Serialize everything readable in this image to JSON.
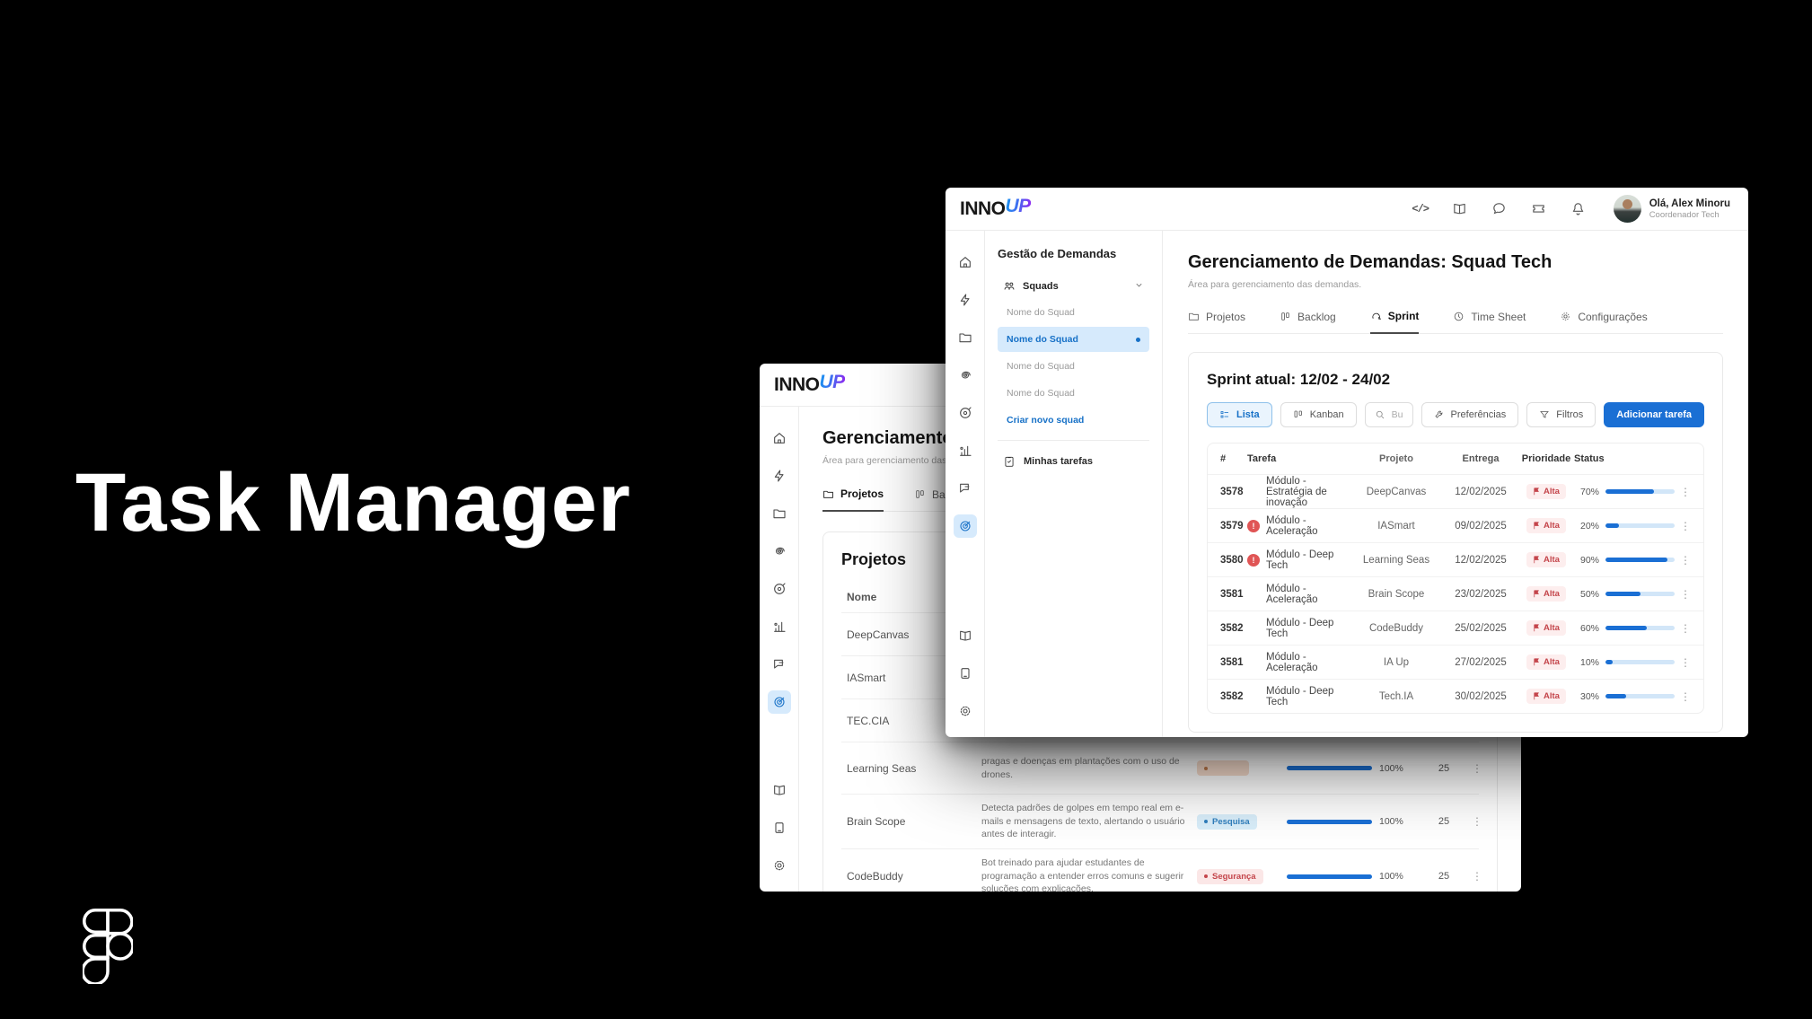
{
  "slide": {
    "title": "Task Manager"
  },
  "brand": {
    "name_primary": "INNO",
    "name_accent": "UP"
  },
  "colors": {
    "primary_blue": "#1a6fd4",
    "active_light_blue": "#d6eafc",
    "link_blue": "#1771c7",
    "alert_red": "#e05555",
    "priority_red": "#c4454b",
    "tag_research_blue": "#2f7fbe",
    "tag_security_red": "#c4454b",
    "progress_track": "#d2e6f8",
    "background": "#000000"
  },
  "rail_icons": [
    "home",
    "flash",
    "folder",
    "spiral",
    "audio-disc",
    "stats",
    "chat-feedback",
    "target",
    "book",
    "tablet",
    "gear"
  ],
  "header_icons": [
    "code",
    "book",
    "chat-bubble",
    "ticket",
    "bell"
  ],
  "front_window": {
    "user": {
      "greeting": "Olá, Alex Minoru",
      "role": "Coordenador Tech"
    },
    "sidebar": {
      "title": "Gestão de Demandas",
      "squads_label": "Squads",
      "squad_items": [
        {
          "label": "Nome do Squad",
          "active": false
        },
        {
          "label": "Nome do Squad",
          "active": true
        },
        {
          "label": "Nome do Squad",
          "active": false
        },
        {
          "label": "Nome do Squad",
          "active": false
        }
      ],
      "create_link": "Criar novo squad",
      "my_tasks": "Minhas tarefas"
    },
    "page": {
      "title": "Gerenciamento de Demandas: Squad Tech",
      "subtitle": "Área para gerenciamento das demandas.",
      "tabs": [
        {
          "label": "Projetos",
          "active": false
        },
        {
          "label": "Backlog",
          "active": false
        },
        {
          "label": "Sprint",
          "active": true
        },
        {
          "label": "Time Sheet",
          "active": false
        },
        {
          "label": "Configurações",
          "active": false
        }
      ]
    },
    "sprint": {
      "title": "Sprint atual: 12/02 - 24/02",
      "view_list": "Lista",
      "view_kanban": "Kanban",
      "search_placeholder": "Buscar tarefa...",
      "preferences_label": "Preferências",
      "filters_label": "Filtros",
      "add_task_label": "Adicionar tarefa",
      "table": {
        "columns": {
          "id": "#",
          "task": "Tarefa",
          "project": "Projeto",
          "due": "Entrega",
          "priority": "Prioridade",
          "status": "Status"
        },
        "rows": [
          {
            "id": "3578",
            "alert": false,
            "task": "Módulo - Estratégia de inovação",
            "project": "DeepCanvas",
            "due": "12/02/2025",
            "priority": "Alta",
            "progress": 70,
            "progress_label": "70%"
          },
          {
            "id": "3579",
            "alert": true,
            "task": "Módulo - Aceleração",
            "project": "IASmart",
            "due": "09/02/2025",
            "priority": "Alta",
            "progress": 20,
            "progress_label": "20%"
          },
          {
            "id": "3580",
            "alert": true,
            "task": "Módulo - Deep Tech",
            "project": "Learning Seas",
            "due": "12/02/2025",
            "priority": "Alta",
            "progress": 90,
            "progress_label": "90%"
          },
          {
            "id": "3581",
            "alert": false,
            "task": "Módulo - Aceleração",
            "project": "Brain Scope",
            "due": "23/02/2025",
            "priority": "Alta",
            "progress": 50,
            "progress_label": "50%"
          },
          {
            "id": "3582",
            "alert": false,
            "task": "Módulo - Deep Tech",
            "project": "CodeBuddy",
            "due": "25/02/2025",
            "priority": "Alta",
            "progress": 60,
            "progress_label": "60%"
          },
          {
            "id": "3581",
            "alert": false,
            "task": "Módulo - Aceleração",
            "project": "IA Up",
            "due": "27/02/2025",
            "priority": "Alta",
            "progress": 10,
            "progress_label": "10%"
          },
          {
            "id": "3582",
            "alert": false,
            "task": "Módulo - Deep Tech",
            "project": "Tech.IA",
            "due": "30/02/2025",
            "priority": "Alta",
            "progress": 30,
            "progress_label": "30%"
          }
        ]
      }
    }
  },
  "back_window": {
    "page": {
      "title": "Gerenciamento de Demandas",
      "subtitle": "Área para gerenciamento das demandas.",
      "tabs": [
        {
          "label": "Projetos",
          "active": true
        },
        {
          "label": "Backlog",
          "active": false
        }
      ],
      "section_title": "Projetos",
      "table": {
        "name_column": "Nome",
        "rows": [
          {
            "name": "DeepCanvas"
          },
          {
            "name": "IASmart"
          },
          {
            "name": "TEC.CIA"
          },
          {
            "name": "Learning Seas",
            "description": "pragas e doenças em plantações com o uso de drones.",
            "tag": {
              "label": "",
              "type": "agro"
            },
            "progress_label": "100%",
            "points": "25"
          },
          {
            "name": "Brain Scope",
            "description": "Detecta padrões de golpes em tempo real em e-mails e mensagens de texto, alertando o usuário antes de interagir.",
            "tag": {
              "label": "Pesquisa",
              "type": "pesquisa"
            },
            "progress_label": "100%",
            "points": "25"
          },
          {
            "name": "CodeBuddy",
            "description": "Bot treinado para ajudar estudantes de programação a entender erros comuns e sugerir soluções com explicações.",
            "tag": {
              "label": "Segurança",
              "type": "seguranca"
            },
            "progress_label": "100%",
            "points": "25"
          }
        ]
      }
    }
  }
}
